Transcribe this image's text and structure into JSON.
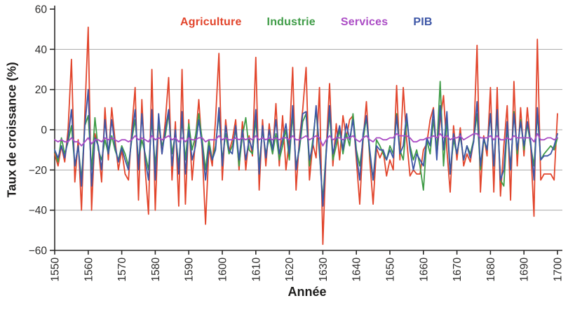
{
  "chart_data": {
    "type": "line",
    "title": "",
    "xlabel": "Année",
    "ylabel": "Taux de croissance (%)",
    "x_start": 1550,
    "x_end": 1700,
    "x_tick_step": 10,
    "ylim": [
      -60,
      60
    ],
    "y_tick_step": 20,
    "grid": "horizontal-only",
    "legend_position": "top-inside",
    "x_ticks": [
      1550,
      1560,
      1570,
      1580,
      1590,
      1600,
      1610,
      1620,
      1630,
      1640,
      1650,
      1660,
      1670,
      1680,
      1690,
      1700
    ],
    "x_tick_labels": [
      "1550",
      "1560",
      "1570",
      "1580",
      "1590",
      "1600",
      "1610",
      "1620",
      "1630",
      "1640",
      "1650",
      "1660",
      "1670",
      "1680",
      "1690",
      "1700"
    ],
    "y_ticks": [
      60,
      40,
      20,
      0,
      -20,
      -40,
      -60
    ],
    "y_tick_labels": [
      "60",
      "40",
      "20",
      "0",
      "−20",
      "−40",
      "−60"
    ],
    "y_gridlines": [
      40,
      20,
      0,
      -20,
      -40
    ],
    "style": {
      "grid_color": "#a8a8a8",
      "axis_color": "#2b2a29"
    },
    "series": [
      {
        "name": "Agriculture",
        "color": "#e2452c",
        "values": [
          -12,
          -18,
          -8,
          -16,
          0,
          35,
          -26,
          -5,
          -40,
          8,
          51,
          -40,
          -2,
          -8,
          -26,
          11,
          -15,
          11,
          -5,
          -20,
          -10,
          -22,
          -25,
          0,
          21,
          -35,
          15,
          -20,
          -42,
          30,
          -40,
          5,
          -12,
          4,
          26,
          -25,
          4,
          -38,
          30,
          -37,
          5,
          -25,
          -5,
          15,
          -10,
          -47,
          -9,
          -18,
          5,
          38,
          -25,
          5,
          -11,
          -5,
          5,
          -20,
          4,
          -20,
          -3,
          -13,
          36,
          -30,
          5,
          -18,
          3,
          -12,
          13,
          -18,
          7,
          -20,
          -5,
          31,
          -30,
          -5,
          10,
          31,
          -25,
          -7,
          -14,
          21,
          -57,
          -10,
          23,
          -18,
          3,
          -15,
          7,
          -4,
          5,
          7,
          -15,
          -37,
          -5,
          14,
          -15,
          -37,
          -9,
          -14,
          -10,
          -23,
          -15,
          -20,
          22,
          -15,
          21,
          -5,
          -23,
          -20,
          -22,
          -22,
          -10,
          -7,
          5,
          11,
          -13,
          5,
          17,
          -10,
          -31,
          2,
          -15,
          1,
          -18,
          -12,
          -16,
          -5,
          42,
          -31,
          -3,
          -13,
          21,
          -31,
          21,
          -33,
          -8,
          12,
          -35,
          24,
          -18,
          11,
          -13,
          11,
          -8,
          -43,
          45,
          -25,
          -22,
          -22,
          -22,
          -25,
          8
        ]
      },
      {
        "name": "Industrie",
        "color": "#3f9c47",
        "values": [
          -10,
          -16,
          -4,
          -12,
          -6,
          2,
          -18,
          -8,
          -25,
          2,
          7,
          -20,
          6,
          -10,
          -15,
          -5,
          -12,
          -3,
          -10,
          -15,
          -8,
          -12,
          -18,
          -5,
          5,
          -15,
          -5,
          -12,
          -20,
          5,
          -18,
          3,
          -8,
          -3,
          8,
          -12,
          -2,
          -18,
          5,
          -15,
          3,
          -10,
          -3,
          8,
          -5,
          -20,
          -5,
          -15,
          -8,
          8,
          -15,
          -2,
          -12,
          -8,
          0,
          -18,
          -3,
          6,
          -10,
          -12,
          5,
          -18,
          0,
          -12,
          -4,
          -12,
          -2,
          -15,
          -8,
          0,
          -15,
          8,
          -18,
          -10,
          4,
          8,
          -18,
          -5,
          10,
          -12,
          -35,
          -10,
          8,
          -15,
          -8,
          0,
          -12,
          -2,
          -8,
          8,
          -10,
          -18,
          -5,
          6,
          -12,
          -25,
          -5,
          -8,
          -12,
          -15,
          -8,
          -12,
          8,
          -10,
          -15,
          5,
          -8,
          -15,
          -10,
          -18,
          -30,
          -5,
          -12,
          5,
          -10,
          24,
          -18,
          5,
          -22,
          -5,
          -12,
          -3,
          -15,
          -8,
          -12,
          -5,
          8,
          -20,
          -5,
          -10,
          8,
          -18,
          8,
          -25,
          -28,
          2,
          -20,
          9,
          -12,
          5,
          -10,
          3,
          -8,
          -18,
          8,
          -15,
          -12,
          -10,
          -8,
          -10,
          -4
        ]
      },
      {
        "name": "Services",
        "color": "#ab4cc5",
        "values": [
          -5,
          -6,
          -5,
          -6,
          -6,
          -4,
          -6,
          -6,
          -8,
          -6,
          -4,
          -7,
          -5,
          -5,
          -6,
          -4,
          -5,
          -4,
          -5,
          -6,
          -5,
          -5,
          -6,
          -5,
          -3,
          -5,
          -4,
          -5,
          -6,
          -3,
          -5,
          -4,
          -5,
          -4,
          -3,
          -5,
          -4,
          -6,
          -4,
          -6,
          -4,
          -5,
          -5,
          -4,
          -4,
          -6,
          -5,
          -5,
          -5,
          -3,
          -5,
          -4,
          -5,
          -5,
          -4,
          -5,
          -4,
          -5,
          -4,
          -5,
          -3,
          -5,
          -4,
          -5,
          -4,
          -5,
          -4,
          -5,
          -4,
          -4,
          -5,
          -3,
          -5,
          -5,
          -4,
          -3,
          -5,
          -4,
          -3,
          -4,
          -8,
          -5,
          -3,
          -5,
          -4,
          -4,
          -5,
          -4,
          -4,
          -3,
          -5,
          -6,
          -4,
          -3,
          -5,
          -6,
          -4,
          -4,
          -5,
          -5,
          -4,
          -4,
          -2,
          -3,
          -3,
          -3,
          -4,
          -6,
          -6,
          -5,
          -5,
          -4,
          -4,
          -3,
          -4,
          -2,
          -4,
          -3,
          -5,
          -4,
          -4,
          -3,
          -5,
          -4,
          -3,
          -2,
          -2,
          -4,
          -4,
          -4,
          -3,
          -5,
          -3,
          -5,
          -5,
          -4,
          -5,
          -3,
          -4,
          -4,
          -4,
          -4,
          -4,
          -6,
          -2,
          -5,
          -5,
          -4,
          -4,
          -5,
          -4
        ]
      },
      {
        "name": "PIB",
        "color": "#3d56a6",
        "values": [
          -10,
          -14,
          -8,
          -14,
          -4,
          10,
          -18,
          -8,
          -28,
          2,
          20,
          -28,
          -4,
          -8,
          -20,
          5,
          -12,
          5,
          -8,
          -16,
          -9,
          -15,
          -20,
          -3,
          10,
          -20,
          8,
          -15,
          -25,
          10,
          -25,
          8,
          -12,
          0,
          10,
          -18,
          0,
          -22,
          9,
          -22,
          0,
          -15,
          -8,
          5,
          -8,
          -25,
          -8,
          -15,
          -10,
          11,
          -18,
          2,
          -10,
          -12,
          2,
          -15,
          0,
          -15,
          -5,
          -10,
          10,
          -22,
          2,
          -14,
          0,
          -10,
          5,
          -12,
          -5,
          3,
          -12,
          12,
          -20,
          -8,
          8,
          9,
          -15,
          -8,
          12,
          -10,
          -38,
          -12,
          12,
          -12,
          -5,
          2,
          -10,
          3,
          -5,
          5,
          -12,
          -25,
          -2,
          7,
          -10,
          -25,
          -8,
          -10,
          -10,
          -15,
          -10,
          -14,
          7,
          -12,
          -8,
          8,
          -10,
          -20,
          -12,
          -15,
          -18,
          -4,
          -8,
          10,
          -15,
          12,
          -10,
          9,
          -22,
          -2,
          -12,
          -2,
          -15,
          -8,
          -14,
          -6,
          14,
          -18,
          -4,
          -10,
          8,
          -18,
          10,
          -25,
          -20,
          4,
          -20,
          8,
          -10,
          4,
          -8,
          4,
          -6,
          -25,
          11,
          -15,
          -13,
          -13,
          -12,
          -8,
          -2
        ]
      }
    ]
  }
}
